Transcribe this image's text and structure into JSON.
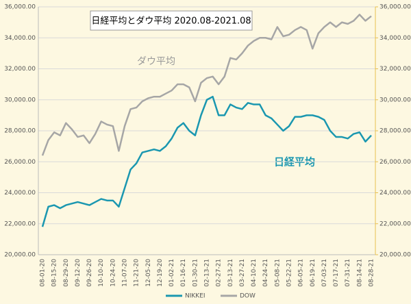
{
  "chart_data": {
    "type": "line",
    "title": "日経平均とダウ平均 2020.08-2021.08",
    "annotations": [
      "ダウ平均",
      "日経平均"
    ],
    "categories": [
      "08-01-20",
      null,
      "08-15-20",
      null,
      "08-29-20",
      null,
      "09-12-20",
      null,
      "09-26-20",
      null,
      "10-10-20",
      null,
      "10-24-20",
      null,
      "11-07-20",
      null,
      "11-21-20",
      null,
      "12-05-20",
      null,
      "12-19-20",
      null,
      "01-02-21",
      null,
      "01-16-21",
      null,
      "01-30-21",
      null,
      "02-13-21",
      null,
      "02-27-21",
      null,
      "03-13-21",
      null,
      "03-27-21",
      null,
      "04-10-21",
      null,
      "04-24-21",
      null,
      "05-08-21",
      null,
      "05-22-21",
      null,
      "06-05-21",
      null,
      "06-19-21",
      null,
      "07-03-21",
      null,
      "07-17-21",
      null,
      "07-31-21",
      null,
      "08-14-21",
      null,
      "08-28-21"
    ],
    "series": [
      {
        "name": "NIKKEI",
        "color": "#1a97b0",
        "values": [
          21800,
          23100,
          23200,
          23000,
          23200,
          23300,
          23400,
          23300,
          23200,
          23400,
          23600,
          23500,
          23500,
          23100,
          24300,
          25500,
          25900,
          26600,
          26700,
          26800,
          26700,
          27000,
          27500,
          28200,
          28500,
          28000,
          27700,
          29000,
          30000,
          30200,
          29000,
          29000,
          29700,
          29500,
          29400,
          29800,
          29700,
          29700,
          29000,
          28800,
          28400,
          28000,
          28300,
          28900,
          28900,
          29000,
          29000,
          28900,
          28700,
          28000,
          27600,
          27600,
          27500,
          27800,
          27900,
          27300,
          27700
        ]
      },
      {
        "name": "DOW",
        "color": "#a6a6a6",
        "values": [
          26400,
          27400,
          27900,
          27700,
          28500,
          28100,
          27600,
          27700,
          27200,
          27800,
          28600,
          28400,
          28300,
          26700,
          28300,
          29400,
          29500,
          29900,
          30100,
          30200,
          30200,
          30400,
          30600,
          31000,
          31000,
          30800,
          29900,
          31100,
          31400,
          31500,
          31000,
          31500,
          32700,
          32600,
          33000,
          33500,
          33800,
          34000,
          34000,
          33900,
          34700,
          34100,
          34200,
          34500,
          34700,
          34500,
          33300,
          34300,
          34700,
          35000,
          34700,
          35000,
          34900,
          35100,
          35500,
          35100,
          35400
        ]
      }
    ],
    "ylim": [
      20000,
      36000
    ],
    "yticks": [
      {
        "value": 20000,
        "label": "20,000.00"
      },
      {
        "value": 22000,
        "label": "22,000.00"
      },
      {
        "value": 24000,
        "label": "24,000.00"
      },
      {
        "value": 26000,
        "label": "26,000.00"
      },
      {
        "value": 28000,
        "label": "28,000.00"
      },
      {
        "value": 30000,
        "label": "30,000.00"
      },
      {
        "value": 32000,
        "label": "32,000.00"
      },
      {
        "value": 34000,
        "label": "34,000.00"
      },
      {
        "value": 36000,
        "label": "36,000.00"
      }
    ],
    "y2lim": [
      20000,
      36000
    ],
    "y2ticks": [
      {
        "value": 20000,
        "label": "20,000.00"
      },
      {
        "value": 22000,
        "label": "22,000.00"
      },
      {
        "value": 24000,
        "label": "24,000.00"
      },
      {
        "value": 26000,
        "label": "26,000.00"
      },
      {
        "value": 28000,
        "label": "28,000.00"
      },
      {
        "value": 30000,
        "label": "30,000.00"
      },
      {
        "value": 32000,
        "label": "32,000.00"
      },
      {
        "value": 34000,
        "label": "34,000.00"
      },
      {
        "value": 36000,
        "label": "36,000.00"
      }
    ],
    "grid": true,
    "legend": "bottom"
  }
}
